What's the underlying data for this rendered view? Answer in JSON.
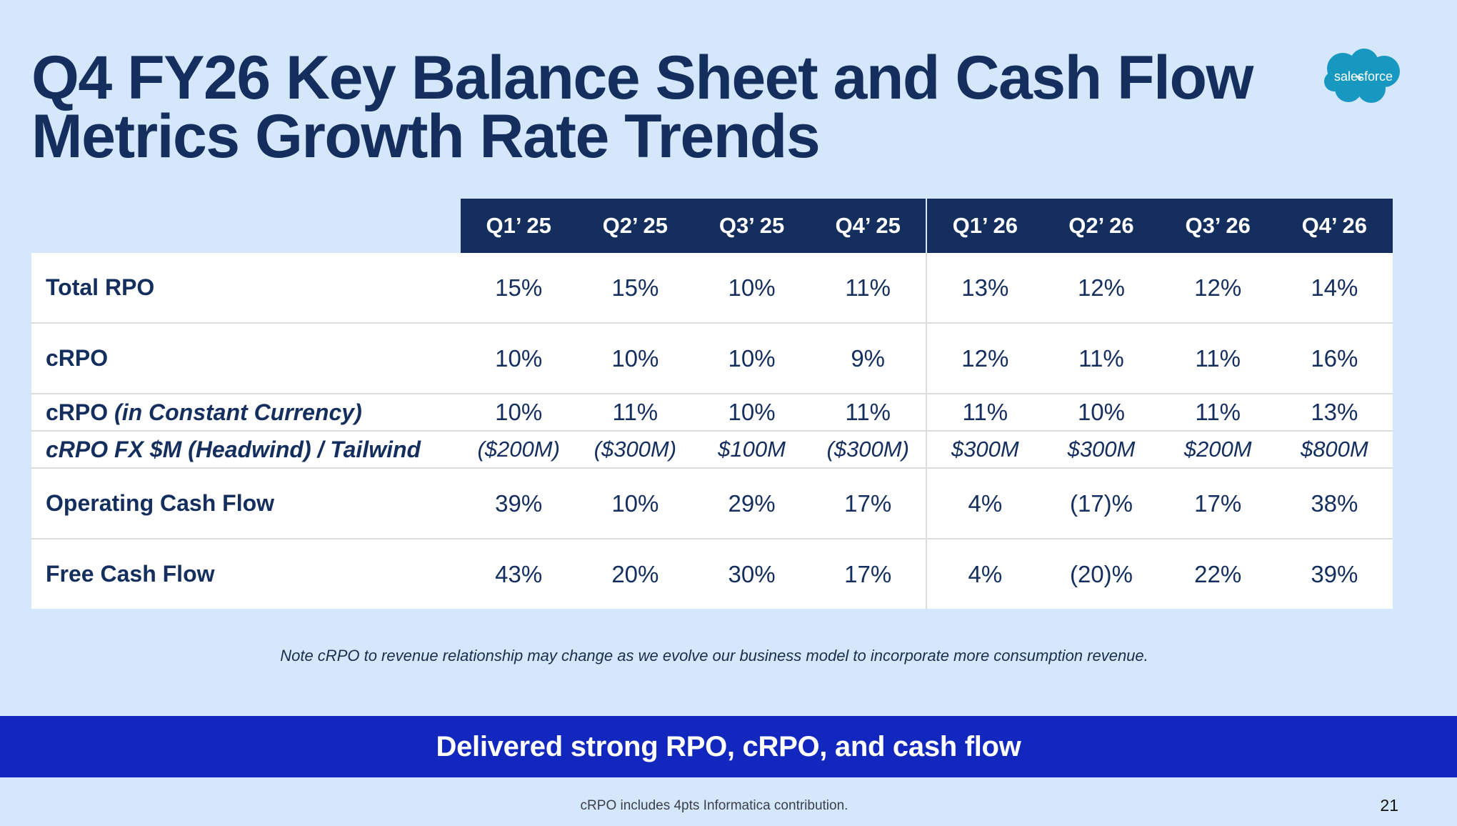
{
  "title": {
    "line1": "Q4 FY26 Key Balance Sheet and Cash Flow",
    "line2": "Metrics Growth Rate Trends"
  },
  "logo": {
    "text": "salesforce",
    "color": "#1798c1",
    "icon": "salesforce-cloud-logo"
  },
  "table": {
    "quarters": [
      "Q1’ 25",
      "Q2’ 25",
      "Q3’ 25",
      "Q4’ 25",
      "Q1’ 26",
      "Q2’ 26",
      "Q3’ 26",
      "Q4’ 26"
    ],
    "rows": [
      {
        "label": "Total RPO",
        "values": [
          "15%",
          "15%",
          "10%",
          "11%",
          "13%",
          "12%",
          "12%",
          "14%"
        ]
      },
      {
        "label": "cRPO",
        "values": [
          "10%",
          "10%",
          "10%",
          "9%",
          "12%",
          "11%",
          "11%",
          "16%"
        ]
      },
      {
        "label": "cRPO",
        "label_suffix": "(in Constant Currency)",
        "values": [
          "10%",
          "11%",
          "10%",
          "11%",
          "11%",
          "10%",
          "11%",
          "13%"
        ]
      },
      {
        "label": "cRPO FX $M (Headwind) / Tailwind",
        "values": [
          "($200M)",
          "($300M)",
          "$100M",
          "($300M)",
          "$300M",
          "$300M",
          "$200M",
          "$800M"
        ]
      },
      {
        "label": "Operating Cash Flow",
        "values": [
          "39%",
          "10%",
          "29%",
          "17%",
          "4%",
          "(17)%",
          "17%",
          "38%"
        ]
      },
      {
        "label": "Free Cash Flow",
        "values": [
          "43%",
          "20%",
          "30%",
          "17%",
          "4%",
          "(20)%",
          "22%",
          "39%"
        ]
      }
    ]
  },
  "note": "Note cRPO to revenue relationship may change as we evolve our business model to incorporate more consumption revenue.",
  "banner": "Delivered strong RPO, cRPO, and cash flow",
  "footnote": "cRPO includes 4pts Informatica contribution.",
  "page_number": "21",
  "colors": {
    "background": "#d4e7fb",
    "navy": "#142e5e",
    "banner_blue": "#1127bd",
    "logo_blue": "#1798c1"
  }
}
